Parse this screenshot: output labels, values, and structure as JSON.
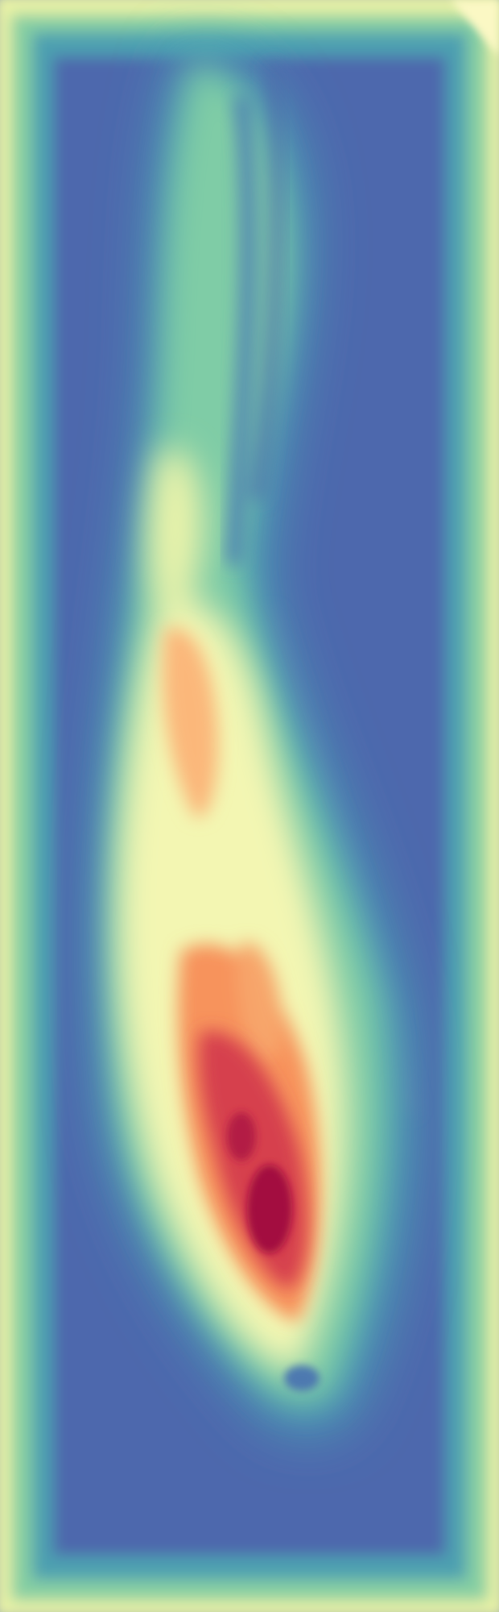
{
  "figure": {
    "kind": "heatmap",
    "colormap": "spectral",
    "colors": {
      "background": "#4e67ad",
      "frame_outer": "#e9f2a6",
      "frame_inner": "#4da0b0",
      "low_teal": "#3f97b8",
      "mid_green": "#7fcda5",
      "pale_yellow": "#f6f9b4",
      "light_orange": "#fdc37f",
      "orange": "#f6854f",
      "red": "#d43d4f",
      "deep_red": "#9e0142"
    },
    "has_axes": false,
    "has_colorbar": false,
    "text_labels": []
  }
}
